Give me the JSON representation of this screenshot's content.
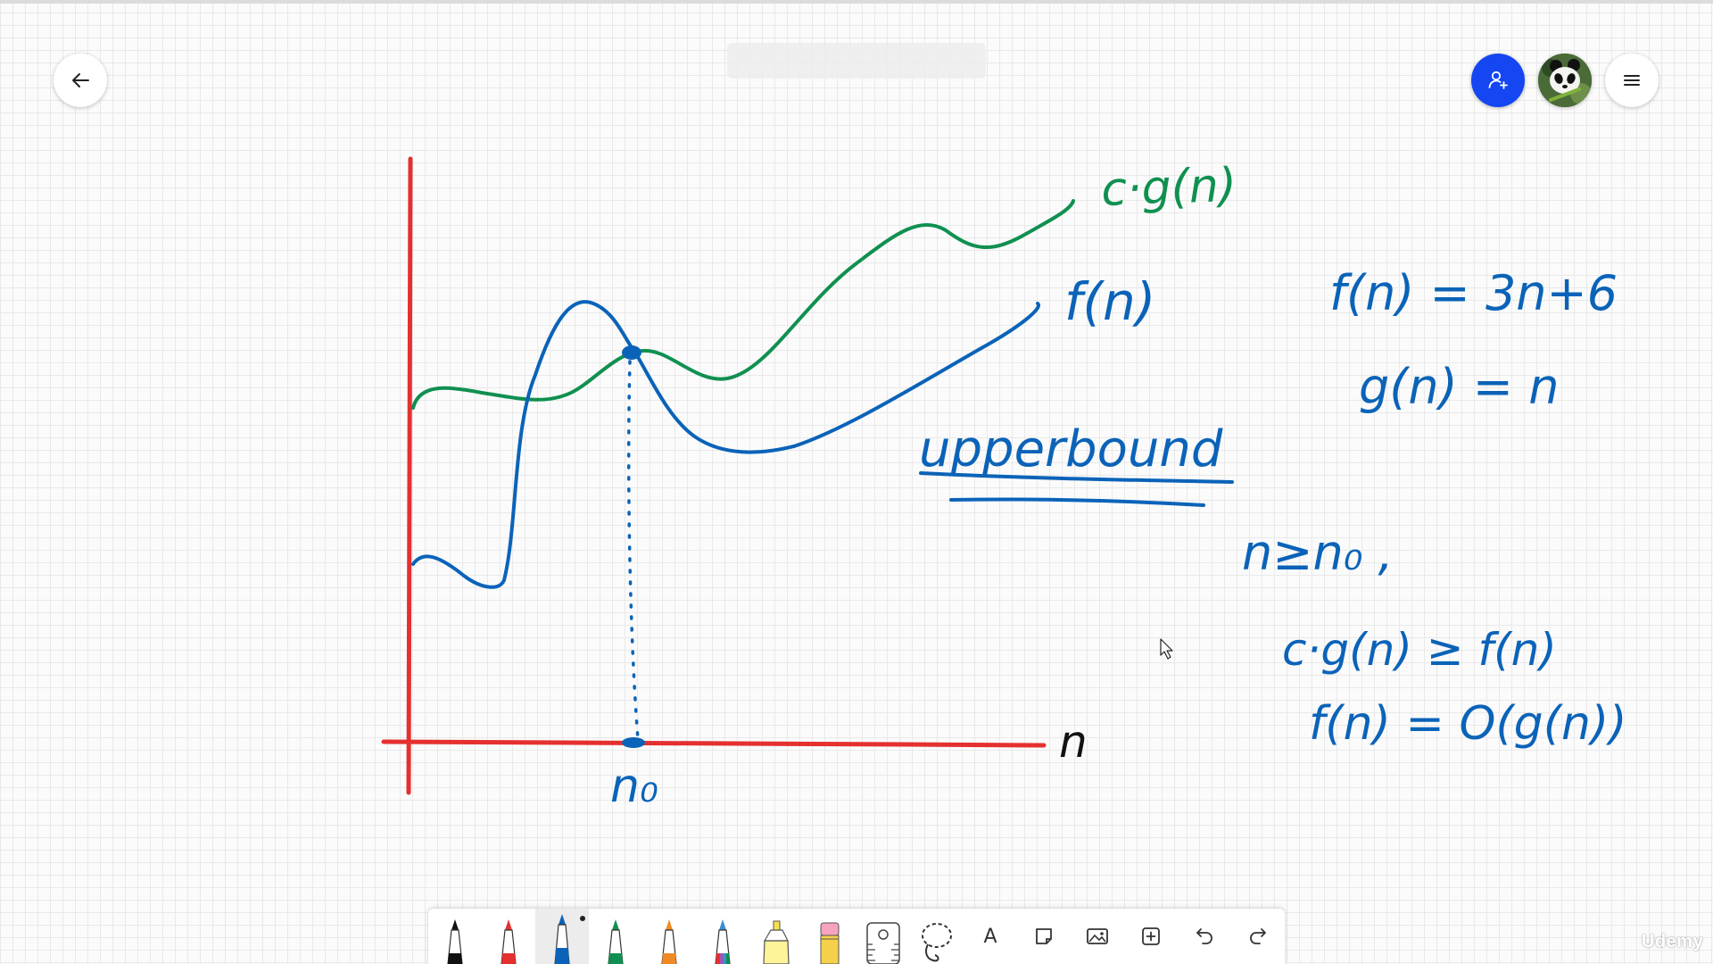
{
  "colors": {
    "axis_red": "#e53030",
    "ink_blue": "#0b63b8",
    "ink_green": "#109050",
    "ink_black": "#111111",
    "share_button": "#1446f2"
  },
  "header": {
    "back_icon": "arrow-left-icon",
    "share_icon": "add-user-icon",
    "menu_icon": "hamburger-menu-icon"
  },
  "whiteboard": {
    "label_cg": "c·g(n)",
    "label_f": "f(n)",
    "label_n": "n",
    "label_n0": "n₀",
    "eq_f": "f(n) = 3n+6",
    "eq_g": "g(n) = n",
    "upper_bound": "upperbound",
    "cond_n": "n≥n₀ ,",
    "cond_ineq": "c·g(n) ≥ f(n)",
    "big_o": "f(n) = O(g(n))"
  },
  "toolbar": {
    "tools": [
      "black-pen-icon",
      "red-pen-icon",
      "blue-pen-icon",
      "green-pen-icon",
      "orange-pen-icon",
      "rainbow-pen-icon",
      "highlighter-icon",
      "eraser-icon",
      "ruler-icon",
      "lasso-icon",
      "text-icon",
      "sticky-note-icon",
      "image-icon",
      "add-icon",
      "undo-icon",
      "redo-icon"
    ],
    "text_tool_glyph": "A"
  },
  "watermark": "Udemy"
}
